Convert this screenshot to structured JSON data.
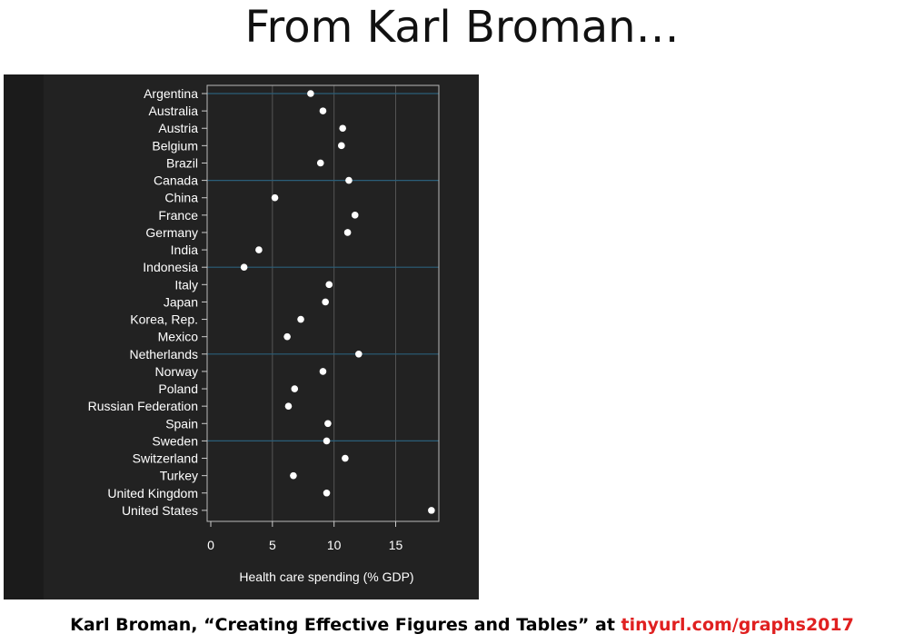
{
  "slide": {
    "title": "From Karl Broman…",
    "footer_text": "Karl Broman, “Creating Effective Figures and Tables” at ",
    "footer_link": "tinyurl.com/graphs2017"
  },
  "colors": {
    "panel_background": "#222222",
    "highlight_line": "#2b5f7a",
    "grid": "#555555",
    "point": "#ffffff",
    "text": "#ffffff",
    "link": "#e02020"
  },
  "chart_data": {
    "type": "scatter",
    "title": "",
    "xlabel": "Health care spending (% GDP)",
    "ylabel": "",
    "xlim": [
      0,
      18.5
    ],
    "xticks": [
      0,
      5,
      10,
      15
    ],
    "grid": "vertical",
    "highlight_every": 5,
    "categories": [
      "Argentina",
      "Australia",
      "Austria",
      "Belgium",
      "Brazil",
      "Canada",
      "China",
      "France",
      "Germany",
      "India",
      "Indonesia",
      "Italy",
      "Japan",
      "Korea, Rep.",
      "Mexico",
      "Netherlands",
      "Norway",
      "Poland",
      "Russian Federation",
      "Spain",
      "Sweden",
      "Switzerland",
      "Turkey",
      "United Kingdom",
      "United States"
    ],
    "values": [
      8.1,
      9.1,
      10.7,
      10.6,
      8.9,
      11.2,
      5.2,
      11.7,
      11.1,
      3.9,
      2.7,
      9.6,
      9.3,
      7.3,
      6.2,
      12.0,
      9.1,
      6.8,
      6.3,
      9.5,
      9.4,
      10.9,
      6.7,
      9.4,
      17.9
    ]
  }
}
